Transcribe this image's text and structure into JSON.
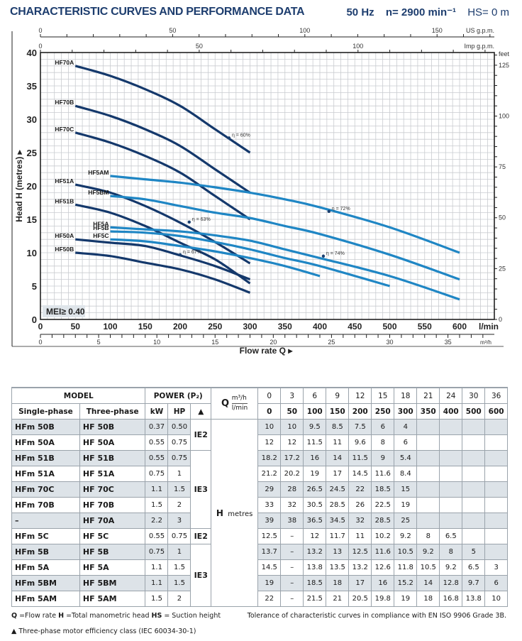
{
  "header": {
    "title": "CHARACTERISTIC CURVES AND PERFORMANCE DATA",
    "freq": "50 Hz",
    "speed": "n= 2900 min⁻¹",
    "suction": "HS= 0 m"
  },
  "chart_data": {
    "type": "line",
    "title": "CHARACTERISTIC CURVES AND PERFORMANCE DATA",
    "xlabel": "Flow rate Q",
    "ylabel": "Head H (metres)",
    "x_unit": "l/min",
    "xlim": [
      0,
      650
    ],
    "ylim": [
      0,
      40
    ],
    "x_ticks": [
      0,
      50,
      100,
      150,
      200,
      250,
      300,
      350,
      400,
      450,
      500,
      550,
      600
    ],
    "y_ticks": [
      0,
      5,
      10,
      15,
      20,
      25,
      30,
      35,
      40
    ],
    "secondary_axes": {
      "m3h": {
        "label": "m³/h",
        "ticks": [
          0,
          5,
          10,
          15,
          20,
          25,
          30,
          35
        ]
      },
      "us_gpm": {
        "label": "US g.p.m.",
        "ticks": [
          0,
          50,
          100,
          150
        ]
      },
      "imp_gpm": {
        "label": "Imp g.p.m.",
        "ticks": [
          0,
          50,
          100
        ]
      },
      "feet": {
        "label": "feet",
        "ticks": [
          0,
          25,
          50,
          75,
          100,
          125
        ]
      }
    },
    "grid": true,
    "badge": "MEI≥ 0.40",
    "series": [
      {
        "name": "HF70A",
        "color": "#14386b",
        "x": [
          50,
          100,
          150,
          200,
          250,
          300
        ],
        "y": [
          38,
          36.5,
          34.5,
          32,
          28.5,
          25
        ]
      },
      {
        "name": "HF70B",
        "color": "#14386b",
        "x": [
          50,
          100,
          150,
          200,
          250,
          300
        ],
        "y": [
          32,
          30.5,
          28.5,
          26,
          22.5,
          19
        ]
      },
      {
        "name": "HF70C",
        "color": "#14386b",
        "x": [
          50,
          100,
          150,
          200,
          250,
          300
        ],
        "y": [
          28,
          26.5,
          24.5,
          22,
          18.5,
          15
        ]
      },
      {
        "name": "HF51A",
        "color": "#14386b",
        "x": [
          50,
          100,
          150,
          200,
          250,
          300
        ],
        "y": [
          20.2,
          19,
          17,
          14.5,
          11.6,
          8.4
        ]
      },
      {
        "name": "HF51B",
        "color": "#14386b",
        "x": [
          50,
          100,
          150,
          200,
          250,
          300
        ],
        "y": [
          17.2,
          16,
          14,
          11.5,
          9,
          5.4
        ]
      },
      {
        "name": "HF50A",
        "color": "#14386b",
        "x": [
          50,
          100,
          150,
          200,
          250,
          300
        ],
        "y": [
          12,
          11.5,
          11,
          9.6,
          8,
          6
        ]
      },
      {
        "name": "HF50B",
        "color": "#14386b",
        "x": [
          50,
          100,
          150,
          200,
          250,
          300
        ],
        "y": [
          10,
          9.5,
          8.5,
          7.5,
          6,
          4
        ]
      },
      {
        "name": "HF5AM",
        "color": "#1f86c4",
        "x": [
          100,
          150,
          200,
          250,
          300,
          350,
          400,
          500,
          600
        ],
        "y": [
          21.5,
          21,
          20.5,
          19.8,
          19,
          18,
          16.8,
          13.8,
          10
        ]
      },
      {
        "name": "HF5BM",
        "color": "#1f86c4",
        "x": [
          100,
          150,
          200,
          250,
          300,
          350,
          400,
          500,
          600
        ],
        "y": [
          18.5,
          18,
          17,
          16,
          15.2,
          14,
          12.8,
          9.7,
          6
        ]
      },
      {
        "name": "HF5A",
        "color": "#1f86c4",
        "x": [
          100,
          150,
          200,
          250,
          300,
          350,
          400,
          500,
          600
        ],
        "y": [
          13.8,
          13.5,
          13.2,
          12.6,
          11.8,
          10.5,
          9.2,
          6.5,
          3
        ]
      },
      {
        "name": "HF5B",
        "color": "#1f86c4",
        "x": [
          100,
          150,
          200,
          250,
          300,
          350,
          400,
          500
        ],
        "y": [
          13.2,
          13,
          12.5,
          11.6,
          10.5,
          9.2,
          8,
          5
        ]
      },
      {
        "name": "HF5C",
        "color": "#1f86c4",
        "x": [
          100,
          150,
          200,
          250,
          300,
          350,
          400
        ],
        "y": [
          12,
          11.7,
          11,
          10.2,
          9.2,
          8,
          6.5
        ]
      }
    ],
    "annotations": [
      {
        "text": "η = 60%",
        "x": 270,
        "y": 27.3
      },
      {
        "text": "η = 63%",
        "x": 213,
        "y": 14.7
      },
      {
        "text": "η = 67%",
        "x": 200,
        "y": 9.8
      },
      {
        "text": "η = 72%",
        "x": 413,
        "y": 16.3
      },
      {
        "text": "η = 74%",
        "x": 405,
        "y": 9.6
      }
    ]
  },
  "table": {
    "headers": {
      "model": "MODEL",
      "power": "POWER (P₂)",
      "single": "Single-phase",
      "three": "Three-phase",
      "kw": "kW",
      "hp": "HP",
      "eff": "▲",
      "q": "Q",
      "m3h": "m³/h",
      "lmin": "l/min",
      "h_label": "H",
      "h_unit": "metres"
    },
    "q_m3h": [
      "0",
      "3",
      "6",
      "9",
      "12",
      "15",
      "18",
      "21",
      "24",
      "30",
      "36"
    ],
    "q_lmin": [
      "0",
      "50",
      "100",
      "150",
      "200",
      "250",
      "300",
      "350",
      "400",
      "500",
      "600"
    ],
    "rows": [
      {
        "single": "HFm 50B",
        "three": "HF 50B",
        "kw": "0.37",
        "hp": "0.50",
        "h": [
          "10",
          "10",
          "9.5",
          "8.5",
          "7.5",
          "6",
          "4",
          "",
          "",
          "",
          ""
        ]
      },
      {
        "single": "HFm 50A",
        "three": "HF 50A",
        "kw": "0.55",
        "hp": "0.75",
        "h": [
          "12",
          "12",
          "11.5",
          "11",
          "9.6",
          "8",
          "6",
          "",
          "",
          "",
          ""
        ]
      },
      {
        "single": "HFm 51B",
        "three": "HF 51B",
        "kw": "0.55",
        "hp": "0.75",
        "h": [
          "18.2",
          "17.2",
          "16",
          "14",
          "11.5",
          "9",
          "5.4",
          "",
          "",
          "",
          ""
        ]
      },
      {
        "single": "HFm 51A",
        "three": "HF 51A",
        "kw": "0.75",
        "hp": "1",
        "h": [
          "21.2",
          "20.2",
          "19",
          "17",
          "14.5",
          "11.6",
          "8.4",
          "",
          "",
          "",
          ""
        ]
      },
      {
        "single": "HFm 70C",
        "three": "HF 70C",
        "kw": "1.1",
        "hp": "1.5",
        "h": [
          "29",
          "28",
          "26.5",
          "24.5",
          "22",
          "18.5",
          "15",
          "",
          "",
          "",
          ""
        ]
      },
      {
        "single": "HFm 70B",
        "three": "HF 70B",
        "kw": "1.5",
        "hp": "2",
        "h": [
          "33",
          "32",
          "30.5",
          "28.5",
          "26",
          "22.5",
          "19",
          "",
          "",
          "",
          ""
        ]
      },
      {
        "single": "–",
        "three": "HF 70A",
        "kw": "2.2",
        "hp": "3",
        "h": [
          "39",
          "38",
          "36.5",
          "34.5",
          "32",
          "28.5",
          "25",
          "",
          "",
          "",
          ""
        ]
      },
      {
        "single": "HFm 5C",
        "three": "HF 5C",
        "kw": "0.55",
        "hp": "0.75",
        "h": [
          "12.5",
          "–",
          "12",
          "11.7",
          "11",
          "10.2",
          "9.2",
          "8",
          "6.5",
          "",
          ""
        ]
      },
      {
        "single": "HFm 5B",
        "three": "HF 5B",
        "kw": "0.75",
        "hp": "1",
        "h": [
          "13.7",
          "–",
          "13.2",
          "13",
          "12.5",
          "11.6",
          "10.5",
          "9.2",
          "8",
          "5",
          ""
        ]
      },
      {
        "single": "HFm 5A",
        "three": "HF 5A",
        "kw": "1.1",
        "hp": "1.5",
        "h": [
          "14.5",
          "–",
          "13.8",
          "13.5",
          "13.2",
          "12.6",
          "11.8",
          "10.5",
          "9.2",
          "6.5",
          "3"
        ]
      },
      {
        "single": "HFm 5BM",
        "three": "HF 5BM",
        "kw": "1.1",
        "hp": "1.5",
        "h": [
          "19",
          "–",
          "18.5",
          "18",
          "17",
          "16",
          "15.2",
          "14",
          "12.8",
          "9.7",
          "6"
        ]
      },
      {
        "single": "HFm 5AM",
        "three": "HF 5AM",
        "kw": "1.5",
        "hp": "2",
        "h": [
          "22",
          "–",
          "21.5",
          "21",
          "20.5",
          "19.8",
          "19",
          "18",
          "16.8",
          "13.8",
          "10"
        ]
      }
    ],
    "ie_groups": [
      {
        "label": "IE2",
        "rows": 2
      },
      {
        "label": "IE3",
        "rows": 5
      },
      {
        "label": "IE2",
        "rows": 1
      },
      {
        "label": "IE3",
        "rows": 4
      }
    ]
  },
  "notes": {
    "legend": "Q =Flow rate  H =Total manometric head  HS = Suction height",
    "legend_parts": [
      "Q",
      " =Flow rate  ",
      "H",
      " =Total manometric head  ",
      "HS",
      " = Suction height"
    ],
    "efficiency": "▲  Three-phase motor efficiency class (IEC 60034-30-1)",
    "tolerance": "Tolerance of characteristic curves in compliance with EN ISO 9906 Grade 3B."
  }
}
